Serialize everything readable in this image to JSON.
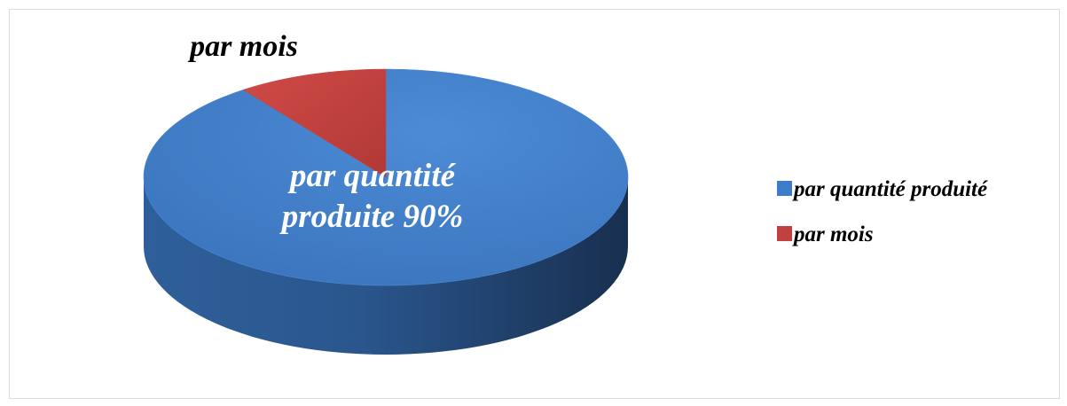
{
  "chart_data": {
    "type": "pie",
    "style": "3d",
    "slices": [
      {
        "label": "par quantité produité",
        "value": 90,
        "color": "#3d7cc9"
      },
      {
        "label": "par mois",
        "value": 10,
        "color": "#c0413f"
      }
    ],
    "data_labels": [
      {
        "lines": [
          "par quantité",
          "produite 90%"
        ],
        "slice": 0
      },
      {
        "lines": [
          "par mois"
        ],
        "slice": 1
      }
    ],
    "legend": {
      "placement": "right",
      "items": [
        {
          "label": "par quantité produité",
          "color": "#3d7cc9"
        },
        {
          "label": "par mois",
          "color": "#c0413f"
        }
      ]
    }
  }
}
